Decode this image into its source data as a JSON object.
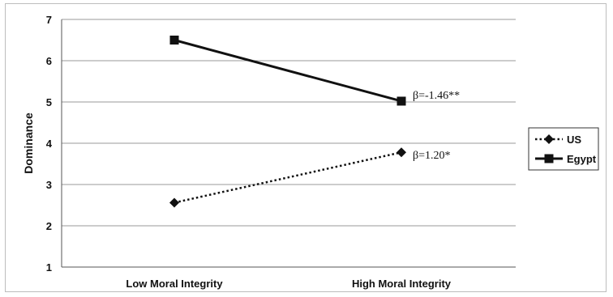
{
  "chart_data": {
    "type": "line",
    "title": "",
    "xlabel": "",
    "ylabel": "Dominance",
    "categories": [
      "Low Moral Integrity",
      "High Moral Integrity"
    ],
    "ylim": [
      1,
      7
    ],
    "yticks": [
      "1",
      "2",
      "3",
      "4",
      "5",
      "6",
      "7"
    ],
    "grid": true,
    "legend_position": "right",
    "series": [
      {
        "name": "US",
        "values": [
          2.56,
          3.78
        ],
        "line_style": "dotted",
        "marker": "diamond",
        "color": "#111111"
      },
      {
        "name": "Egypt",
        "values": [
          6.5,
          5.02
        ],
        "line_style": "solid",
        "marker": "square",
        "color": "#111111"
      }
    ],
    "annotations": [
      {
        "series": "Egypt",
        "category": "High Moral Integrity",
        "text": "β=-1.46**"
      },
      {
        "series": "US",
        "category": "High Moral Integrity",
        "text": "β=1.20*"
      }
    ]
  }
}
